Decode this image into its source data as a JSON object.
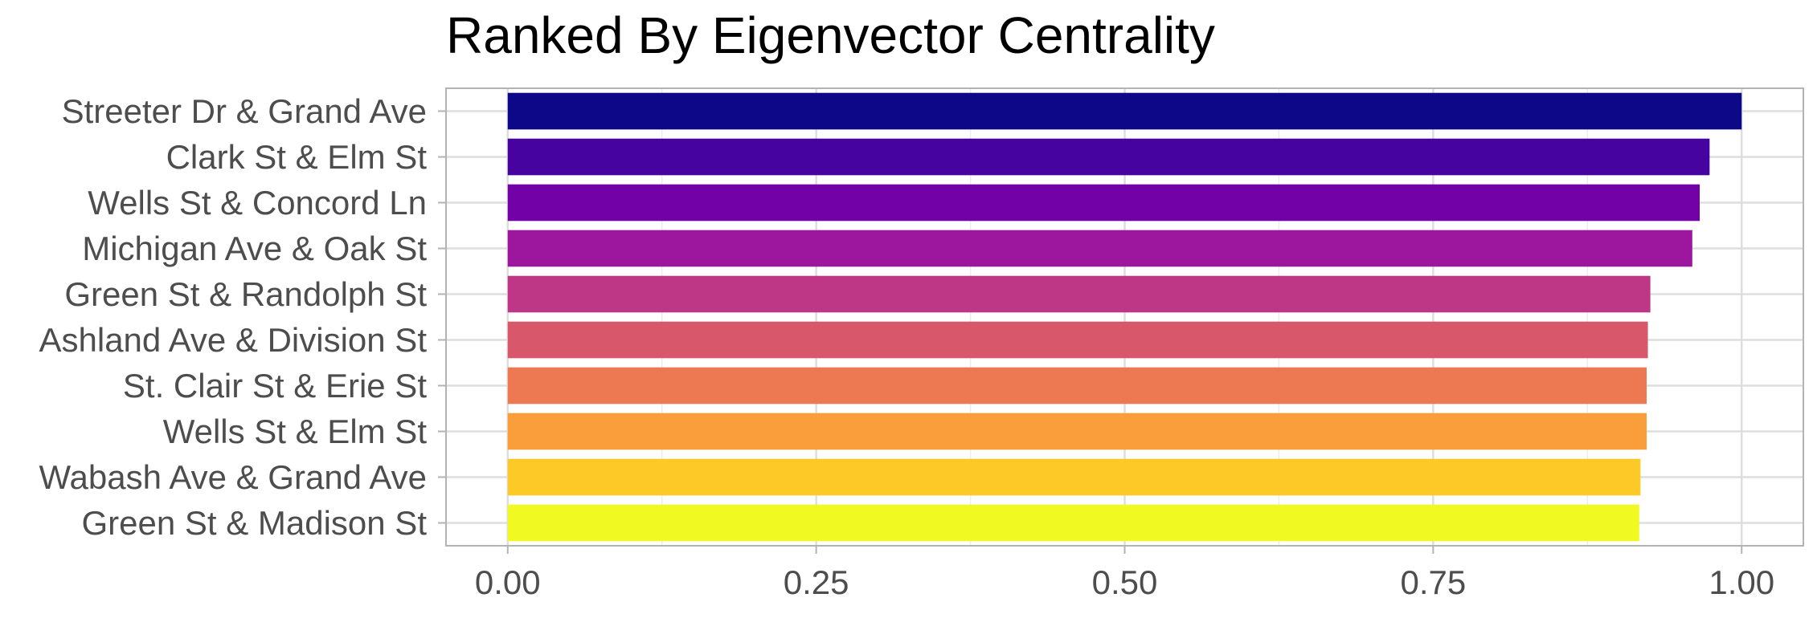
{
  "chart_data": {
    "type": "bar",
    "orientation": "horizontal",
    "title": "Ranked By Eigenvector Centrality",
    "xlabel": "",
    "ylabel": "",
    "categories": [
      "Streeter Dr & Grand Ave",
      "Clark St & Elm St",
      "Wells St & Concord Ln",
      "Michigan Ave & Oak St",
      "Green St & Randolph St",
      "Ashland Ave & Division St",
      "St. Clair St & Erie St",
      "Wells St & Elm St",
      "Wabash Ave & Grand Ave",
      "Green St & Madison St"
    ],
    "values": [
      1.0,
      0.974,
      0.966,
      0.96,
      0.926,
      0.924,
      0.923,
      0.923,
      0.918,
      0.917
    ],
    "colors": [
      "#0d0887",
      "#47039f",
      "#7301a8",
      "#9c179e",
      "#bd3786",
      "#d8576b",
      "#ed7953",
      "#fa9e3b",
      "#fdc926",
      "#f0f921"
    ],
    "xlim": [
      -0.05,
      1.05
    ],
    "xticks": [
      "0.00",
      "0.25",
      "0.50",
      "0.75",
      "1.00"
    ],
    "xtick_values": [
      0,
      0.25,
      0.5,
      0.75,
      1.0
    ],
    "grid": true,
    "legend": "none"
  }
}
